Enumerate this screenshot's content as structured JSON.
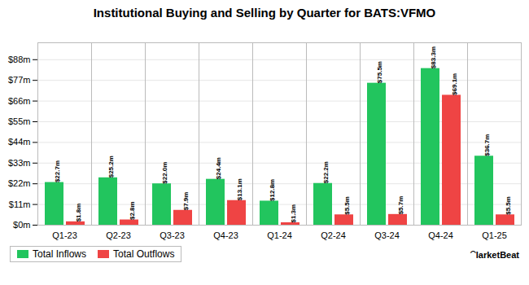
{
  "chart_data": {
    "type": "bar",
    "title": "Institutional Buying and Selling by Quarter for BATS:VFMO",
    "categories": [
      "Q1-23",
      "Q2-23",
      "Q3-23",
      "Q4-23",
      "Q1-24",
      "Q2-24",
      "Q3-24",
      "Q4-24",
      "Q1-25"
    ],
    "series": [
      {
        "name": "Total Inflows",
        "color": "#22c55e",
        "values": [
          22.7,
          25.2,
          22.0,
          24.4,
          12.8,
          22.2,
          75.5,
          83.3,
          36.7
        ],
        "value_labels": [
          "$22.7m",
          "$25.2m",
          "$22.0m",
          "$24.4m",
          "$12.8m",
          "$22.2m",
          "$75.5m",
          "$83.3m",
          "$36.7m"
        ]
      },
      {
        "name": "Total Outflows",
        "color": "#ef4444",
        "values": [
          1.8,
          2.8,
          7.9,
          13.1,
          1.3,
          5.5,
          5.7,
          69.1,
          5.5
        ],
        "value_labels": [
          "$1.8m",
          "$2.8m",
          "$7.9m",
          "$13.1m",
          "$1.3m",
          "$5.5m",
          "$5.7m",
          "$69.1m",
          "$5.5m"
        ]
      }
    ],
    "ylim": [
      0,
      97
    ],
    "yticks": [
      {
        "value": 0,
        "label": "$0m"
      },
      {
        "value": 11,
        "label": "$11m"
      },
      {
        "value": 22,
        "label": "$22m"
      },
      {
        "value": 33,
        "label": "$33m"
      },
      {
        "value": 44,
        "label": "$44m"
      },
      {
        "value": 55,
        "label": "$55m"
      },
      {
        "value": 66,
        "label": "$66m"
      },
      {
        "value": 77,
        "label": "$77m"
      },
      {
        "value": 88,
        "label": "$88m"
      }
    ],
    "grid": true,
    "legend": "lower left",
    "data_labels": true,
    "annotations": [
      "⁀larketBeat"
    ]
  }
}
